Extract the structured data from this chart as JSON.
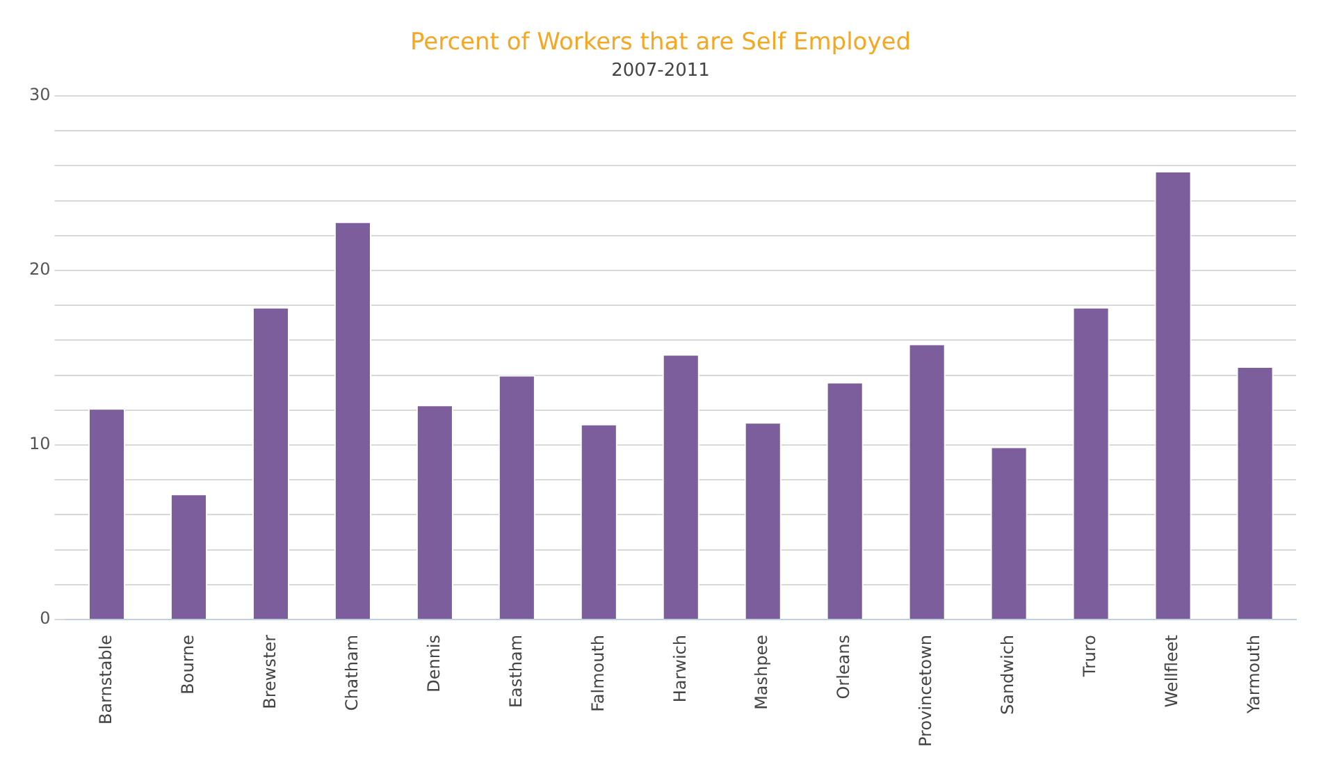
{
  "chart_data": {
    "type": "bar",
    "title": "Percent of Workers that are Self Employed",
    "subtitle": "2007-2011",
    "categories": [
      "Barnstable",
      "Bourne",
      "Brewster",
      "Chatham",
      "Dennis",
      "Eastham",
      "Falmouth",
      "Harwich",
      "Mashpee",
      "Orleans",
      "Provincetown",
      "Sandwich",
      "Truro",
      "Wellfleet",
      "Yarmouth"
    ],
    "values": [
      12.1,
      7.2,
      17.9,
      22.8,
      12.3,
      14.0,
      11.2,
      15.2,
      11.3,
      13.6,
      15.8,
      9.9,
      17.9,
      25.7,
      14.5
    ],
    "color": "#7b5e9b",
    "ylim": [
      0,
      30
    ],
    "yticks": [
      0,
      {
        "value": 2,
        "label": null
      },
      {
        "value": 4,
        "label": null
      },
      {
        "value": 6,
        "label": null
      },
      {
        "value": 8,
        "label": null
      },
      10,
      {
        "value": 12,
        "label": null
      },
      {
        "value": 14,
        "label": null
      },
      {
        "value": 16,
        "label": null
      },
      {
        "value": 18,
        "label": null
      },
      20,
      {
        "value": 22,
        "label": null
      },
      {
        "value": 24,
        "label": null
      },
      {
        "value": 26,
        "label": null
      },
      {
        "value": 28,
        "label": null
      },
      30
    ],
    "grid": "y",
    "legend": false
  }
}
